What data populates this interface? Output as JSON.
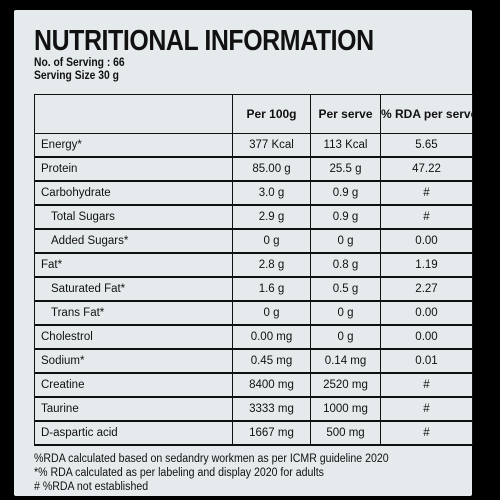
{
  "title": "NUTRITIONAL INFORMATION",
  "servings_line": "No. of Serving : 66",
  "serving_size_line": "Serving Size 30 g",
  "table": {
    "headers": [
      "",
      "Per 100g",
      "Per serve",
      "% RDA per serve"
    ],
    "rows": [
      {
        "name": "Energy*",
        "per100": "377 Kcal",
        "perServe": "113 Kcal",
        "rda": "5.65",
        "indent": false
      },
      {
        "name": "Protein",
        "per100": "85.00 g",
        "perServe": "25.5 g",
        "rda": "47.22",
        "indent": false
      },
      {
        "name": "Carbohydrate",
        "per100": "3.0 g",
        "perServe": "0.9 g",
        "rda": "#",
        "indent": false
      },
      {
        "name": "Total Sugars",
        "per100": "2.9 g",
        "perServe": "0.9 g",
        "rda": "#",
        "indent": true
      },
      {
        "name": "Added Sugars*",
        "per100": "0 g",
        "perServe": "0 g",
        "rda": "0.00",
        "indent": true
      },
      {
        "name": "Fat*",
        "per100": "2.8 g",
        "perServe": "0.8 g",
        "rda": "1.19",
        "indent": false
      },
      {
        "name": "Saturated Fat*",
        "per100": "1.6 g",
        "perServe": "0.5 g",
        "rda": "2.27",
        "indent": true
      },
      {
        "name": "Trans Fat*",
        "per100": "0 g",
        "perServe": "0 g",
        "rda": "0.00",
        "indent": true
      },
      {
        "name": "Cholestrol",
        "per100": "0.00 mg",
        "perServe": "0 g",
        "rda": "0.00",
        "indent": false
      },
      {
        "name": "Sodium*",
        "per100": "0.45 mg",
        "perServe": "0.14 mg",
        "rda": "0.01",
        "indent": false
      },
      {
        "name": "Creatine",
        "per100": "8400 mg",
        "perServe": "2520 mg",
        "rda": "#",
        "indent": false
      },
      {
        "name": "Taurine",
        "per100": "3333 mg",
        "perServe": "1000 mg",
        "rda": "#",
        "indent": false
      },
      {
        "name": "D-aspartic acid",
        "per100": "1667 mg",
        "perServe": "500 mg",
        "rda": "#",
        "indent": false
      }
    ]
  },
  "notes": [
    "%RDA calculated based on sedandry workmen as per ICMR guideline 2020",
    "*% RDA calculated as per labeling and display 2020 for adults",
    "# %RDA not established"
  ]
}
